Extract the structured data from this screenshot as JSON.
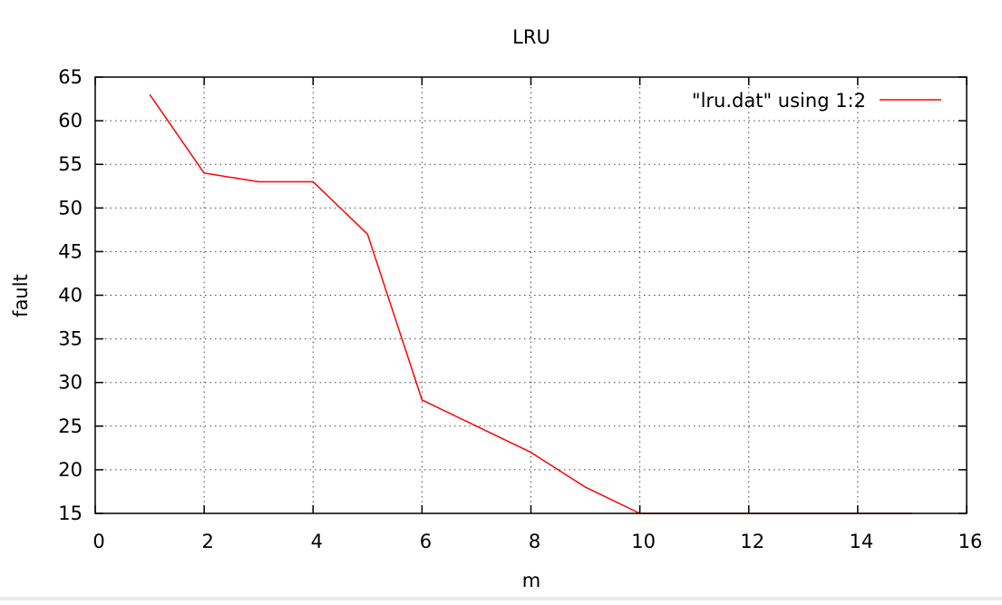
{
  "chart_data": {
    "type": "line",
    "title": "LRU",
    "xlabel": "m",
    "ylabel": "fault",
    "xlim": [
      0,
      16
    ],
    "ylim": [
      15,
      65
    ],
    "xticks": [
      0,
      2,
      4,
      6,
      8,
      10,
      12,
      14,
      16
    ],
    "yticks": [
      15,
      20,
      25,
      30,
      35,
      40,
      45,
      50,
      55,
      60,
      65
    ],
    "grid": true,
    "legend_position": "top-right",
    "series": [
      {
        "name": "\"lru.dat\" using 1:2",
        "color": "#ff0000",
        "x": [
          1,
          2,
          3,
          4,
          5,
          6,
          7,
          8,
          9,
          10,
          11,
          12,
          13,
          14,
          15
        ],
        "y": [
          63,
          54,
          53,
          53,
          47,
          28,
          25,
          22,
          18,
          15,
          15,
          15,
          15,
          15,
          15
        ]
      }
    ]
  }
}
